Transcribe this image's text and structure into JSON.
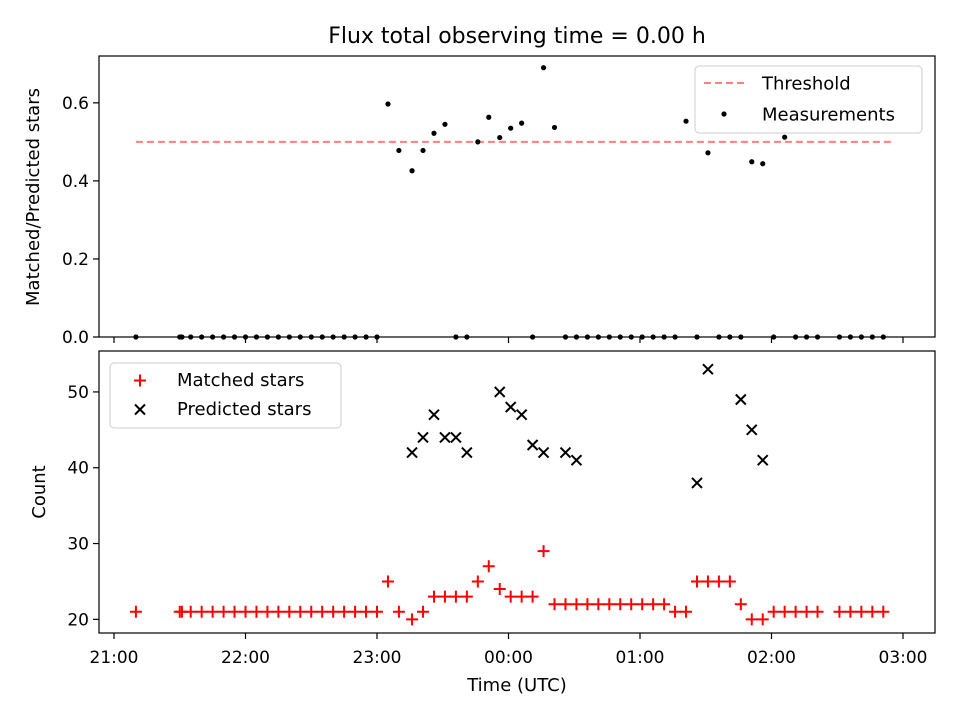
{
  "title": "Flux total observing time = 0.00 h",
  "xlabel": "Time (UTC)",
  "colors": {
    "threshold": "#ff7f7f",
    "measurement": "#000000",
    "matched": "#ff0000",
    "predicted": "#000000"
  },
  "x_ticks": [
    "21:00",
    "22:00",
    "23:00",
    "00:00",
    "01:00",
    "02:00",
    "03:00"
  ],
  "chart_data": [
    {
      "type": "scatter",
      "ylabel": "Matched/Predicted stars",
      "ylim": [
        0,
        0.72
      ],
      "yticks": [
        "0.0",
        "0.2",
        "0.4",
        "0.6"
      ],
      "legend_position": "top-right",
      "threshold": {
        "name": "Threshold",
        "y": 0.5,
        "x_range": [
          "21:10",
          "02:55"
        ]
      },
      "series": [
        {
          "name": "Measurements",
          "x": [
            "21:10",
            "21:30",
            "21:31",
            "21:35",
            "21:40",
            "21:45",
            "21:50",
            "21:55",
            "22:00",
            "22:05",
            "22:10",
            "22:15",
            "22:20",
            "22:25",
            "22:30",
            "22:35",
            "22:40",
            "22:45",
            "22:50",
            "22:55",
            "23:00",
            "23:05",
            "23:10",
            "23:16",
            "23:21",
            "23:26",
            "23:31",
            "23:36",
            "23:41",
            "23:46",
            "23:51",
            "23:56",
            "00:01",
            "00:06",
            "00:11",
            "00:16",
            "00:21",
            "00:26",
            "00:31",
            "00:36",
            "00:41",
            "00:46",
            "00:51",
            "00:56",
            "01:01",
            "01:06",
            "01:11",
            "01:16",
            "01:21",
            "01:26",
            "01:31",
            "01:36",
            "01:41",
            "01:46",
            "01:51",
            "01:56",
            "02:01",
            "02:06",
            "02:11",
            "02:16",
            "02:21",
            "02:31",
            "02:36",
            "02:41",
            "02:46",
            "02:51"
          ],
          "values": [
            0,
            0,
            0,
            0,
            0,
            0,
            0,
            0,
            0,
            0,
            0,
            0,
            0,
            0,
            0,
            0,
            0,
            0,
            0,
            0,
            0,
            0.597,
            0.478,
            0.426,
            0.478,
            0.522,
            0.545,
            0,
            0,
            0.5,
            0.563,
            0.511,
            0.535,
            0.548,
            0,
            0.69,
            0.537,
            0,
            0,
            0,
            0,
            0,
            0,
            0,
            0,
            0,
            0,
            0,
            0.553,
            0,
            0.472,
            0,
            0,
            0,
            0.449,
            0.444,
            0,
            0.512,
            0,
            0,
            0,
            0,
            0,
            0,
            0,
            0
          ]
        }
      ]
    },
    {
      "type": "scatter",
      "ylabel": "Count",
      "ylim": [
        18.2,
        55.4
      ],
      "yticks": [
        "20",
        "30",
        "40",
        "50"
      ],
      "legend_position": "top-left",
      "series": [
        {
          "name": "Matched stars",
          "x": [
            "21:10",
            "21:30",
            "21:31",
            "21:35",
            "21:40",
            "21:45",
            "21:50",
            "21:55",
            "22:00",
            "22:05",
            "22:10",
            "22:15",
            "22:20",
            "22:25",
            "22:30",
            "22:35",
            "22:40",
            "22:45",
            "22:50",
            "22:55",
            "23:00",
            "23:05",
            "23:10",
            "23:16",
            "23:21",
            "23:26",
            "23:31",
            "23:36",
            "23:41",
            "23:46",
            "23:51",
            "23:56",
            "00:01",
            "00:06",
            "00:11",
            "00:16",
            "00:21",
            "00:26",
            "00:31",
            "00:36",
            "00:41",
            "00:46",
            "00:51",
            "00:56",
            "01:01",
            "01:06",
            "01:11",
            "01:16",
            "01:21",
            "01:26",
            "01:31",
            "01:36",
            "01:41",
            "01:46",
            "01:51",
            "01:56",
            "02:01",
            "02:06",
            "02:11",
            "02:16",
            "02:21",
            "02:31",
            "02:36",
            "02:41",
            "02:46",
            "02:51"
          ],
          "values": [
            21,
            21,
            21,
            21,
            21,
            21,
            21,
            21,
            21,
            21,
            21,
            21,
            21,
            21,
            21,
            21,
            21,
            21,
            21,
            21,
            21,
            25,
            21,
            20,
            21,
            23,
            23,
            23,
            23,
            25,
            27,
            24,
            23,
            23,
            23,
            29,
            22,
            22,
            22,
            22,
            22,
            22,
            22,
            22,
            22,
            22,
            22,
            21,
            21,
            25,
            25,
            25,
            25,
            22,
            20,
            20,
            21,
            21,
            21,
            21,
            21,
            21,
            21,
            21,
            21,
            21
          ]
        },
        {
          "name": "Predicted stars",
          "x": [
            "23:16",
            "23:21",
            "23:26",
            "23:31",
            "23:36",
            "23:41",
            "23:56",
            "00:01",
            "00:06",
            "00:11",
            "00:16",
            "00:26",
            "00:31",
            "01:26",
            "01:31",
            "01:46",
            "01:51",
            "01:56"
          ],
          "values": [
            42,
            44,
            47,
            44,
            44,
            42,
            50,
            48,
            47,
            43,
            42,
            42,
            41,
            38,
            53,
            49,
            45,
            41
          ]
        }
      ]
    }
  ]
}
